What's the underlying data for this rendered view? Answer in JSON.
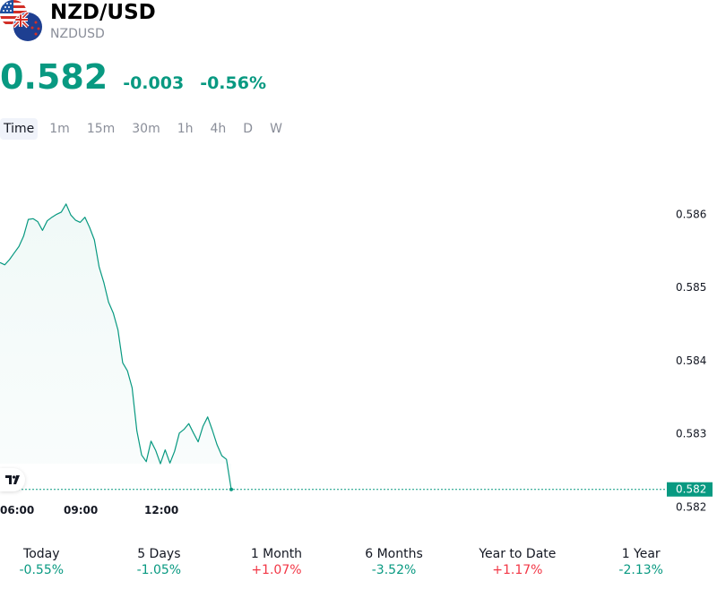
{
  "header": {
    "title": "NZD/USD",
    "ticker": "NZDUSD",
    "icons": [
      "us-flag-icon",
      "nz-flag-icon"
    ]
  },
  "quote": {
    "price": "0.582",
    "change": "-0.003",
    "change_pct": "-0.56%",
    "color": "#089981"
  },
  "tabs": [
    "Time",
    "1m",
    "15m",
    "30m",
    "1h",
    "4h",
    "D",
    "W"
  ],
  "active_tab": "Time",
  "chart_data": {
    "type": "area",
    "series": [
      {
        "values": [
          0.58534,
          0.58531,
          0.58538,
          0.58547,
          0.58556,
          0.5857,
          0.58593,
          0.58594,
          0.5859,
          0.58578,
          0.58591,
          0.58596,
          0.586,
          0.58603,
          0.58614,
          0.58599,
          0.58592,
          0.58589,
          0.58596,
          0.58582,
          0.58565,
          0.58528,
          0.58507,
          0.5848,
          0.58465,
          0.58442,
          0.58397,
          0.58386,
          0.58363,
          0.58304,
          0.58271,
          0.58262,
          0.5829,
          0.58277,
          0.58259,
          0.58278,
          0.5826,
          0.58276,
          0.58301,
          0.58306,
          0.58314,
          0.58301,
          0.58289,
          0.5831,
          0.58323,
          0.58305,
          0.58285,
          0.5827,
          0.58265,
          0.58224
        ]
      }
    ],
    "y_ticks": [
      "0.586",
      "0.585",
      "0.584",
      "0.583",
      "0.582"
    ],
    "x_ticks": [
      "06:00",
      "09:00",
      "12:00"
    ],
    "ylim": [
      0.5822,
      0.5868
    ],
    "last_value_label": "0.582",
    "line_color": "#089981",
    "grid": false
  },
  "performance": [
    {
      "label": "Today",
      "value": "-0.55%",
      "dir": "down"
    },
    {
      "label": "5 Days",
      "value": "-1.05%",
      "dir": "down"
    },
    {
      "label": "1 Month",
      "value": "+1.07%",
      "dir": "up"
    },
    {
      "label": "6 Months",
      "value": "-3.52%",
      "dir": "down"
    },
    {
      "label": "Year to Date",
      "value": "+1.17%",
      "dir": "up"
    },
    {
      "label": "1 Year",
      "value": "-2.13%",
      "dir": "down"
    }
  ],
  "colors": {
    "up": "#f23645",
    "down": "#089981"
  }
}
